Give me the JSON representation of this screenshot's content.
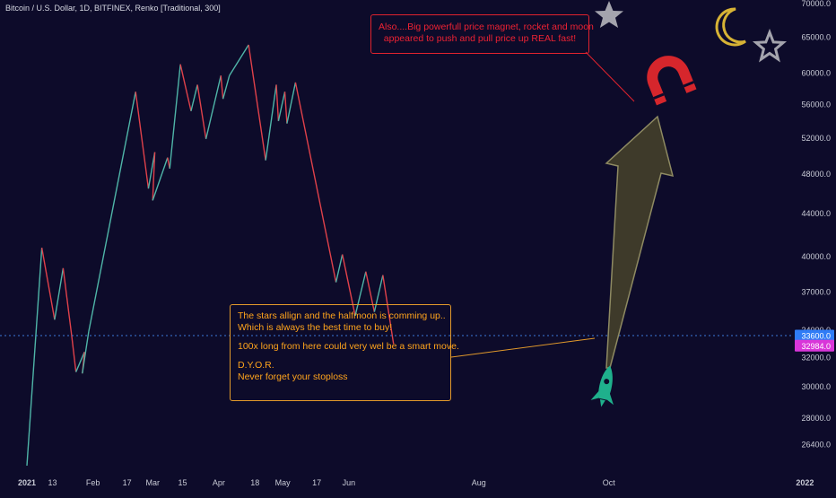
{
  "chart_title": "Bitcoin / U.S. Dollar, 1D, BITFINEX, Renko [Traditional, 300]",
  "colors": {
    "background": "#0d0b2a",
    "up": "#4fb5a8",
    "down": "#e0414a",
    "price_line": "#3b7ad9",
    "label_blue": "#2f7cf6",
    "label_pink": "#d936d9",
    "callout_orange": "#ffa41c",
    "callout_red": "#ee2233",
    "arrow_fill": "#3e3a2a",
    "arrow_stroke": "#8e8a62",
    "rocket": "#1fb08c",
    "magnet": "#d6262c",
    "star": "#a4a4ad",
    "moon": "#d7b335"
  },
  "chart_data": {
    "type": "line",
    "renderer": "renko",
    "brick_size": 300,
    "title": "Bitcoin / U.S. Dollar, 1D, BITFINEX, Renko [Traditional, 300]",
    "y_axis": {
      "scale": "log",
      "ylim": [
        24900,
        70000
      ],
      "ticks": [
        70000,
        65000,
        60000,
        56000,
        52000,
        48000,
        44000,
        40000,
        37000,
        34000,
        32000,
        30000,
        28000,
        26400
      ]
    },
    "x_axis": {
      "range": [
        "2021-01-01",
        "2022-01-08"
      ],
      "ticks": [
        {
          "date": "2021-01-01",
          "label": "2021"
        },
        {
          "date": "2021-01-13",
          "label": "13"
        },
        {
          "date": "2021-02-01",
          "label": "Feb"
        },
        {
          "date": "2021-02-17",
          "label": "17"
        },
        {
          "date": "2021-03-01",
          "label": "Mar"
        },
        {
          "date": "2021-03-15",
          "label": "15"
        },
        {
          "date": "2021-04-01",
          "label": "Apr"
        },
        {
          "date": "2021-04-18",
          "label": "18"
        },
        {
          "date": "2021-05-01",
          "label": "May"
        },
        {
          "date": "2021-05-17",
          "label": "17"
        },
        {
          "date": "2021-06-01",
          "label": "Jun"
        },
        {
          "date": "2021-08-01",
          "label": "Aug"
        },
        {
          "date": "2021-10-01",
          "label": "Oct"
        },
        {
          "date": "2022-01-01",
          "label": "2022"
        }
      ]
    },
    "series": [
      {
        "points": [
          [
            "2021-01-01",
            25200
          ],
          [
            "2021-01-08",
            40800
          ],
          [
            "2021-01-14",
            34800
          ],
          [
            "2021-01-18",
            39000
          ],
          [
            "2021-01-22",
            33600
          ],
          [
            "2021-01-24",
            31000
          ],
          [
            "2021-01-28",
            32400
          ],
          [
            "2021-01-27",
            30900
          ],
          [
            "2021-01-30",
            33900
          ],
          [
            "2021-02-21",
            57600
          ],
          [
            "2021-02-27",
            46500
          ],
          [
            "2021-03-02",
            50400
          ],
          [
            "2021-03-01",
            45300
          ],
          [
            "2021-03-08",
            49800
          ],
          [
            "2021-03-09",
            48600
          ],
          [
            "2021-03-14",
            61200
          ],
          [
            "2021-03-19",
            55200
          ],
          [
            "2021-03-22",
            58500
          ],
          [
            "2021-03-26",
            51900
          ],
          [
            "2021-04-02",
            59700
          ],
          [
            "2021-04-03",
            56700
          ],
          [
            "2021-04-06",
            59700
          ],
          [
            "2021-04-15",
            63900
          ],
          [
            "2021-04-23",
            49500
          ],
          [
            "2021-04-28",
            58500
          ],
          [
            "2021-04-29",
            54000
          ],
          [
            "2021-05-02",
            57600
          ],
          [
            "2021-05-03",
            53700
          ],
          [
            "2021-05-07",
            58800
          ],
          [
            "2021-05-26",
            37800
          ],
          [
            "2021-05-29",
            40200
          ],
          [
            "2021-06-04",
            35100
          ],
          [
            "2021-06-09",
            38700
          ],
          [
            "2021-06-13",
            35400
          ],
          [
            "2021-06-17",
            38400
          ],
          [
            "2021-06-22",
            32984
          ]
        ]
      }
    ],
    "last_price": 32984,
    "price_labels": [
      {
        "value": "33600.0",
        "level": 33600,
        "color": "#2f7cf6"
      },
      {
        "value": "32984.0",
        "level": 32984,
        "color": "#d936d9"
      }
    ],
    "annotations": [
      {
        "id": "note-main",
        "lines": [
          "The stars allign and the halfmoon is comming up..",
          "Which is always the best time to buy!",
          "",
          "100x long from here could very wel be a smart move.",
          "",
          "D.Y.O.R.",
          "Never forget your stoploss"
        ]
      },
      {
        "id": "note-magnet",
        "lines": [
          "Also....Big powerfull price magnet, rocket and moon",
          "appeared to push and pull price up REAL fast!"
        ]
      }
    ]
  },
  "icons": [
    "star-icon",
    "crescent-moon-icon",
    "magnet-icon",
    "rocket-icon"
  ]
}
